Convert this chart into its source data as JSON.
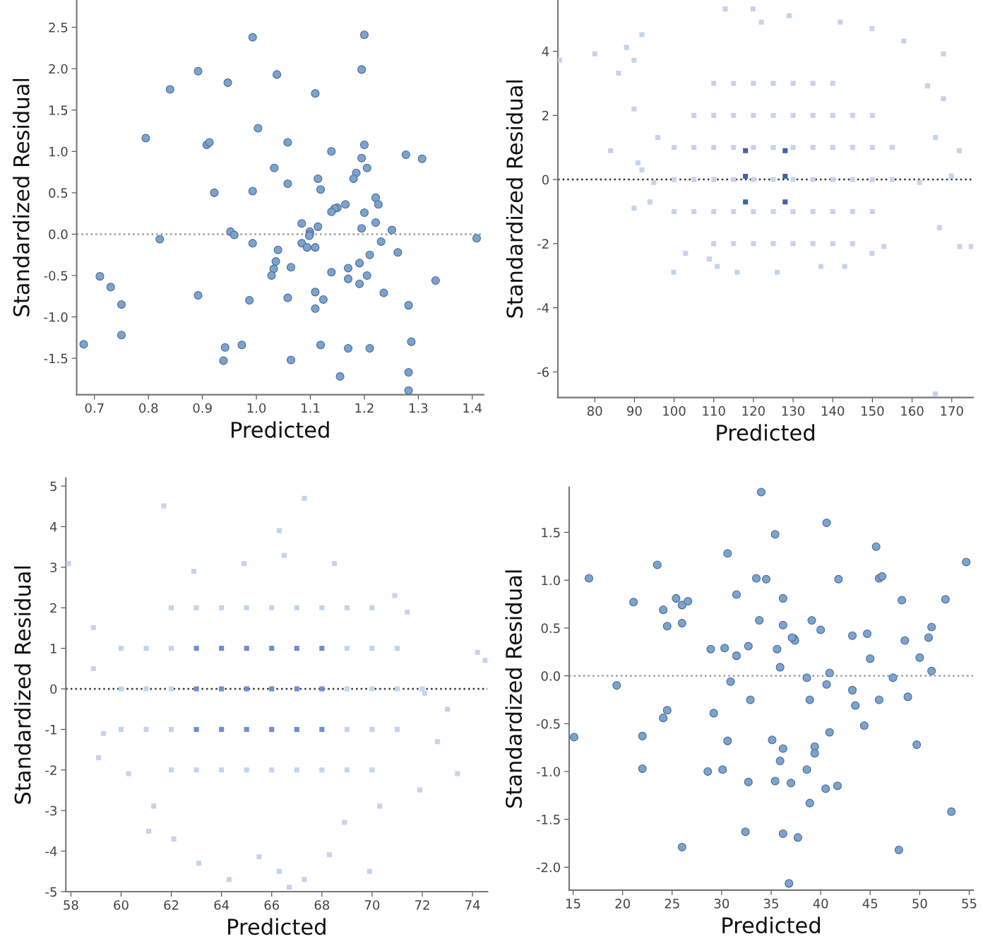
{
  "chart_data": [
    {
      "type": "scatter",
      "xlabel": "Predicted",
      "ylabel": "Standardized Residual",
      "xlim": [
        0.667,
        1.421
      ],
      "ylim": [
        -1.94,
        2.83
      ],
      "xticks": [
        0.7,
        0.8,
        0.9,
        {
          "value": 1,
          "label": "1.0"
        },
        1.1,
        1.2,
        1.3,
        1.4
      ],
      "yticks": [
        -1.5,
        {
          "value": -1,
          "label": "-1.0"
        },
        -0.5,
        {
          "value": 0,
          "label": "0.0"
        },
        0.5,
        {
          "value": 1,
          "label": "1.0"
        },
        1.5,
        {
          "value": 2,
          "label": "2.0"
        },
        2.5
      ],
      "marker": "circle",
      "grid": false,
      "ref_lines": [
        {
          "axis": "y",
          "value": 0,
          "line_style": "dotted",
          "color": "#999999"
        }
      ],
      "series": [
        {
          "color": "#7ba3d0",
          "x": [
            0.68,
            0.71,
            0.73,
            0.75,
            0.75,
            0.795,
            0.84,
            0.821,
            0.892,
            0.892,
            0.908,
            0.913,
            0.922,
            0.947,
            0.952,
            0.959,
            0.942,
            0.939,
            0.973,
            0.993,
            0.993,
            0.993,
            0.987,
            1.003,
            1.033,
            1.038,
            1.04,
            1.036,
            1.032,
            1.028,
            1.058,
            1.058,
            1.109,
            1.139,
            1.195,
            1.2,
            1.205,
            1.195,
            1.2,
            1.114,
            1.119,
            1.185,
            1.18,
            1.277,
            1.307,
            1.221,
            1.226,
            1.165,
            1.15,
            1.145,
            1.139,
            1.2,
            1.221,
            1.195,
            1.251,
            1.084,
            1.114,
            1.099,
            1.099,
            1.098,
            1.084,
            1.094,
            1.109,
            1.231,
            1.262,
            1.408,
            1.064,
            1.21,
            1.191,
            1.139,
            1.17,
            1.17,
            1.191,
            1.205,
            1.332,
            1.236,
            1.058,
            1.109,
            1.124,
            1.109,
            1.282,
            1.119,
            1.17,
            1.21,
            1.287,
            1.064,
            1.155,
            1.282,
            1.282
          ],
          "values": [
            -1.33,
            -0.51,
            -0.64,
            -0.85,
            -1.22,
            1.16,
            1.75,
            -0.06,
            1.97,
            -0.74,
            1.08,
            1.11,
            0.5,
            1.83,
            0.03,
            -0.01,
            -1.37,
            -1.53,
            -1.34,
            2.38,
            0.52,
            -0.11,
            -0.8,
            1.28,
            0.8,
            1.93,
            -0.19,
            -0.33,
            -0.42,
            -0.5,
            1.11,
            0.61,
            1.7,
            1.0,
            0.92,
            1.08,
            0.8,
            1.99,
            2.41,
            0.67,
            0.54,
            0.74,
            0.67,
            0.96,
            0.91,
            0.44,
            0.36,
            0.36,
            0.32,
            0.31,
            0.27,
            0.26,
            0.14,
            0.07,
            0.05,
            0.13,
            0.09,
            0.03,
            0.0,
            -0.02,
            -0.11,
            -0.16,
            -0.16,
            -0.09,
            -0.22,
            -0.05,
            -0.4,
            -0.25,
            -0.35,
            -0.46,
            -0.41,
            -0.54,
            -0.6,
            -0.5,
            -0.56,
            -0.71,
            -0.77,
            -0.7,
            -0.79,
            -0.9,
            -0.86,
            -1.34,
            -1.38,
            -1.38,
            -1.3,
            -1.52,
            -1.72,
            -1.67,
            -1.89
          ]
        }
      ]
    },
    {
      "type": "scatter",
      "xlabel": "Predicted",
      "ylabel": "Standardized Residual",
      "xlim": [
        70.7,
        175.4
      ],
      "ylim": [
        -6.8,
        5.6
      ],
      "xticks": [
        80,
        90,
        100,
        110,
        120,
        130,
        140,
        150,
        160,
        170
      ],
      "yticks": [
        -6,
        -4,
        -2,
        0,
        2,
        4
      ],
      "marker": "square",
      "grid": false,
      "ref_lines": [
        {
          "axis": "y",
          "value": 0,
          "line_style": "dotted",
          "color": "#333333"
        }
      ],
      "series": [
        {
          "color": "#c5d3f0",
          "x": [
            71.1,
            80,
            86,
            88,
            89.9,
            91.9,
            89.9,
            84,
            90.9,
            91.9,
            89.9,
            93.9,
            94.9,
            95.9,
            99.9,
            102.9,
            108.9,
            110.9,
            115.9,
            126,
            137,
            143,
            149.9,
            152.9,
            172,
            174.9,
            165.9,
            112.9,
            119.9,
            129,
            122,
            141.9,
            149.9,
            157.9,
            167.9,
            163.9,
            167.9,
            171.9,
            169.9,
            165.9,
            166.9,
            161.9,
            110,
            115,
            120,
            125,
            130,
            135,
            140,
            105,
            110,
            115,
            120,
            125,
            130,
            135,
            140,
            145,
            150,
            100,
            105,
            110,
            115,
            120,
            125,
            130,
            135,
            140,
            145,
            150,
            155,
            100,
            105,
            110,
            115,
            120,
            125,
            130,
            135,
            140,
            145,
            150,
            155,
            100,
            105,
            110,
            115,
            120,
            125,
            130,
            135,
            140,
            145,
            150,
            110,
            115,
            120,
            125,
            130,
            135,
            140,
            145
          ],
          "values": [
            3.72,
            3.92,
            3.32,
            4.12,
            3.72,
            4.52,
            2.2,
            0.9,
            0.52,
            0.3,
            -0.89,
            -0.7,
            -0.09,
            1.31,
            -2.89,
            -2.3,
            -2.48,
            -2.71,
            -2.89,
            -2.89,
            -2.71,
            -2.71,
            -2.3,
            -2.09,
            -2.09,
            -2.09,
            -6.69,
            5.32,
            5.32,
            5.11,
            4.91,
            4.91,
            4.71,
            4.32,
            3.92,
            2.92,
            2.52,
            0.9,
            0.11,
            1.31,
            -1.5,
            -0.09,
            3,
            3,
            3,
            3,
            3,
            3,
            3,
            2,
            2,
            2,
            2,
            2,
            2,
            2,
            2,
            2,
            2,
            1,
            1,
            1,
            1,
            1,
            1,
            1,
            1,
            1,
            1,
            1,
            1,
            0,
            0,
            0,
            0,
            0,
            0,
            0,
            0,
            0,
            0,
            0,
            0,
            -1,
            -1,
            -1,
            -1,
            -1,
            -1,
            -1,
            -1,
            -1,
            -1,
            -1,
            -2,
            -2,
            -2,
            -2,
            -2,
            -2,
            -2,
            -2
          ]
        },
        {
          "color": "#3f62b5",
          "x": [
            118,
            118,
            118,
            128,
            128,
            128
          ],
          "values": [
            0.9,
            0.1,
            -0.7,
            0.9,
            0.1,
            -0.7
          ]
        }
      ]
    },
    {
      "type": "scatter",
      "xlabel": "Predicted",
      "ylabel": "Standardized Residual",
      "xlim": [
        57.8,
        74.6
      ],
      "ylim": [
        -5,
        5.2
      ],
      "xticks": [
        58,
        60,
        62,
        64,
        66,
        68,
        70,
        72,
        74
      ],
      "yticks": [
        -5,
        -4,
        -3,
        -2,
        -1,
        0,
        1,
        2,
        3,
        4,
        5
      ],
      "marker": "square",
      "grid": false,
      "ref_lines": [
        {
          "axis": "y",
          "value": 0,
          "line_style": "dotted",
          "color": "#333333"
        }
      ],
      "series": [
        {
          "color": "#c5d3f0",
          "x": [
            57.9,
            61.7,
            67.3,
            66.3,
            58.9,
            58.9,
            59.1,
            59.3,
            60.3,
            61.3,
            61.1,
            62.1,
            63.1,
            64.3,
            65.5,
            66.3,
            66.7,
            67.3,
            68.3,
            69.9,
            68.9,
            70.3,
            71.9,
            73.4,
            72.6,
            73.0,
            74.2,
            74.5,
            71.4,
            70.9,
            68.5,
            64.9,
            62.9,
            66.5,
            72.1,
            62,
            63,
            64,
            65,
            66,
            67,
            68,
            69,
            70,
            60,
            61,
            62,
            69,
            70,
            71,
            60,
            61,
            62,
            69,
            70,
            71,
            72,
            60,
            61,
            62,
            69,
            70,
            71,
            62,
            63,
            64,
            65,
            66,
            67,
            68,
            69,
            70
          ],
          "values": [
            3.09,
            4.51,
            4.7,
            3.9,
            1.51,
            0.5,
            -1.7,
            -1.1,
            -2.09,
            -2.89,
            -3.51,
            -3.7,
            -4.3,
            -4.7,
            -4.14,
            -4.5,
            -4.89,
            -4.7,
            -4.09,
            -4.5,
            -3.29,
            -2.89,
            -2.49,
            -2.09,
            -1.3,
            -0.5,
            0.9,
            0.7,
            1.89,
            2.3,
            3.09,
            3.09,
            2.9,
            3.29,
            -0.11,
            2,
            2,
            2,
            2,
            2,
            2,
            2,
            2,
            2,
            1,
            1,
            1,
            1,
            1,
            1,
            0,
            0,
            0,
            0,
            0,
            0,
            0,
            -1,
            -1,
            -1,
            -1,
            -1,
            -1,
            -2,
            -2,
            -2,
            -2,
            -2,
            -2,
            -2,
            -2,
            -2
          ]
        },
        {
          "color": "#6e8fcf",
          "x": [
            63,
            64,
            65,
            66,
            67,
            68,
            63,
            64,
            65,
            66,
            67,
            68,
            63,
            64,
            65,
            66,
            67,
            68
          ],
          "values": [
            1,
            1,
            1,
            1,
            1,
            1,
            0,
            0,
            0,
            0,
            0,
            0,
            -1,
            -1,
            -1,
            -1,
            -1,
            -1
          ]
        }
      ]
    },
    {
      "type": "scatter",
      "xlabel": "Predicted",
      "ylabel": "Standardized Residual",
      "xlim": [
        14.6,
        55.4
      ],
      "ylim": [
        -2.24,
        1.97
      ],
      "xticks": [
        15,
        20,
        25,
        30,
        35,
        40,
        45,
        50,
        55
      ],
      "yticks": [
        {
          "value": -2,
          "label": "-2.0"
        },
        -1.5,
        {
          "value": -1,
          "label": "-1.0"
        },
        -0.5,
        {
          "value": 0,
          "label": "0.0"
        },
        0.5,
        {
          "value": 1,
          "label": "1.0"
        },
        1.5
      ],
      "marker": "circle",
      "grid": false,
      "ref_lines": [
        {
          "axis": "y",
          "value": 0,
          "line_style": "dotted",
          "color": "#999999"
        }
      ],
      "series": [
        {
          "color": "#7ba3d0",
          "x": [
            15.1,
            16.6,
            19.4,
            21.1,
            22.0,
            22.0,
            23.5,
            24.1,
            24.5,
            24.1,
            24.5,
            25.4,
            26.0,
            26.6,
            26.0,
            26.0,
            28.6,
            28.9,
            29.2,
            30.1,
            30.3,
            30.6,
            30.6,
            30.9,
            31.5,
            31.5,
            32.4,
            32.7,
            32.7,
            32.9,
            33.5,
            33.8,
            34.0,
            34.5,
            35.4,
            40.6,
            45.6,
            54.7,
            41.8,
            45.9,
            46.2,
            36.2,
            48.2,
            52.6,
            36.2,
            39.1,
            40.0,
            37.3,
            37.4,
            37.1,
            35.6,
            43.2,
            44.7,
            48.5,
            51.2,
            50.9,
            45.0,
            50.0,
            35.9,
            40.9,
            51.2,
            38.6,
            47.3,
            40.6,
            43.2,
            38.9,
            45.9,
            48.8,
            43.5,
            44.4,
            40.9,
            35.1,
            36.2,
            39.4,
            39.4,
            35.9,
            49.7,
            38.6,
            35.4,
            37.0,
            40.5,
            41.7,
            38.9,
            53.2,
            36.2,
            37.7,
            47.9,
            36.8
          ],
          "values": [
            -0.64,
            1.02,
            -0.1,
            0.77,
            -0.63,
            -0.97,
            1.16,
            0.69,
            0.52,
            -0.44,
            -0.36,
            0.81,
            0.74,
            0.78,
            0.55,
            -1.79,
            -1.0,
            0.28,
            -0.39,
            -0.98,
            0.29,
            1.28,
            -0.68,
            -0.06,
            0.85,
            0.21,
            -1.63,
            -1.11,
            0.31,
            -0.25,
            1.02,
            0.58,
            1.92,
            1.01,
            1.48,
            1.6,
            1.35,
            1.19,
            1.01,
            1.02,
            1.04,
            0.81,
            0.79,
            0.8,
            0.53,
            0.58,
            0.48,
            0.39,
            0.37,
            0.4,
            0.28,
            0.42,
            0.44,
            0.37,
            0.51,
            0.4,
            0.18,
            0.19,
            0.09,
            0.03,
            0.05,
            -0.02,
            -0.02,
            -0.09,
            -0.15,
            -0.25,
            -0.25,
            -0.22,
            -0.31,
            -0.52,
            -0.59,
            -0.67,
            -0.76,
            -0.74,
            -0.81,
            -0.89,
            -0.72,
            -0.98,
            -1.1,
            -1.12,
            -1.18,
            -1.15,
            -1.33,
            -1.42,
            -1.65,
            -1.69,
            -1.82,
            -2.17
          ]
        }
      ]
    }
  ]
}
